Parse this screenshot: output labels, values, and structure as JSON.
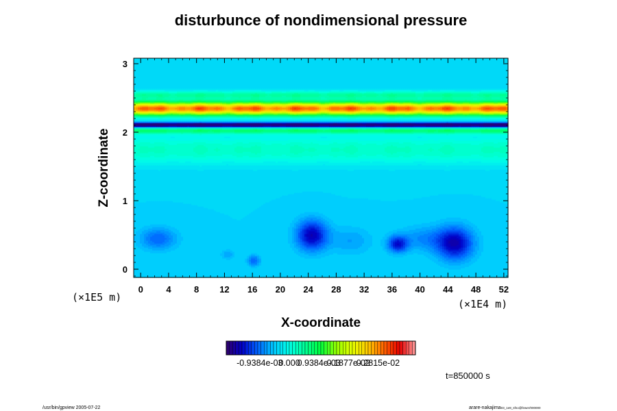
{
  "footer": {
    "left": "/usr/bin/gpview 2005-07-22",
    "right": "arare-nakajima",
    "right_small": "03_1e8_sfno@fewer/000000"
  },
  "time_label": "t=850000 s",
  "chart_data": {
    "type": "heatmap",
    "title": "disturbunce of nondimensional pressure",
    "xlabel": "X-coordinate",
    "ylabel": "Z-coordinate",
    "x_unit": "(×1E4 m)",
    "z_unit": "(×1E5 m)",
    "x_ticks": [
      "0",
      "4",
      "8",
      "12",
      "16",
      "20",
      "24",
      "28",
      "32",
      "36",
      "40",
      "44",
      "48",
      "52"
    ],
    "z_ticks": [
      "0",
      "1",
      "2",
      "3"
    ],
    "xlim": [
      -1,
      52.6
    ],
    "zlim": [
      -0.12,
      3.08
    ],
    "colorbar": {
      "range": [
        -0.002,
        0.004
      ],
      "labels": [
        {
          "text": "-0.9384e-03",
          "value": -0.0009384
        },
        {
          "text": "0.000",
          "value": 0.0
        },
        {
          "text": "0.9384e-03",
          "value": 0.0009384
        },
        {
          "text": "0.1877e-02",
          "value": 0.001877
        },
        {
          "text": "0.2815e-02",
          "value": 0.002815
        }
      ],
      "colors": [
        "#30006a",
        "#0000c8",
        "#0064ff",
        "#00c8ff",
        "#00ffe6",
        "#00ff96",
        "#00ff3c",
        "#96ff00",
        "#e6ff00",
        "#ffc800",
        "#ff6400",
        "#e60000",
        "#ffa0a0"
      ],
      "levels": 60
    },
    "background_value": -0.0004,
    "bands": [
      {
        "z": 2.35,
        "width": 0.1,
        "amplitude": 0.0033
      },
      {
        "z": 2.55,
        "width": 0.06,
        "amplitude": 0.0008
      },
      {
        "z": 2.11,
        "width": 0.035,
        "amplitude": -0.002
      },
      {
        "z": 2.03,
        "width": 0.05,
        "amplitude": 0.001
      },
      {
        "z": 1.75,
        "width": 0.22,
        "amplitude": 0.0006
      }
    ],
    "cells": [
      {
        "x": 2.5,
        "z": 0.45,
        "rx": 2.6,
        "rz": 0.16,
        "amplitude": -0.0006
      },
      {
        "x": 24.5,
        "z": 0.5,
        "rx": 2.2,
        "rz": 0.22,
        "amplitude": -0.0012
      },
      {
        "x": 36.8,
        "z": 0.37,
        "rx": 1.4,
        "rz": 0.12,
        "amplitude": -0.001
      },
      {
        "x": 45.0,
        "z": 0.38,
        "rx": 2.6,
        "rz": 0.24,
        "amplitude": -0.0012
      },
      {
        "x": 16.2,
        "z": 0.13,
        "rx": 0.9,
        "rz": 0.08,
        "amplitude": -0.0006
      },
      {
        "x": 12.5,
        "z": 0.22,
        "rx": 1.0,
        "rz": 0.07,
        "amplitude": -0.0003
      },
      {
        "x": 40.5,
        "z": 0.45,
        "rx": 3.5,
        "rz": 0.18,
        "amplitude": -0.0004
      },
      {
        "x": 30.0,
        "z": 0.42,
        "rx": 3.0,
        "rz": 0.2,
        "amplitude": -0.0003
      }
    ]
  }
}
